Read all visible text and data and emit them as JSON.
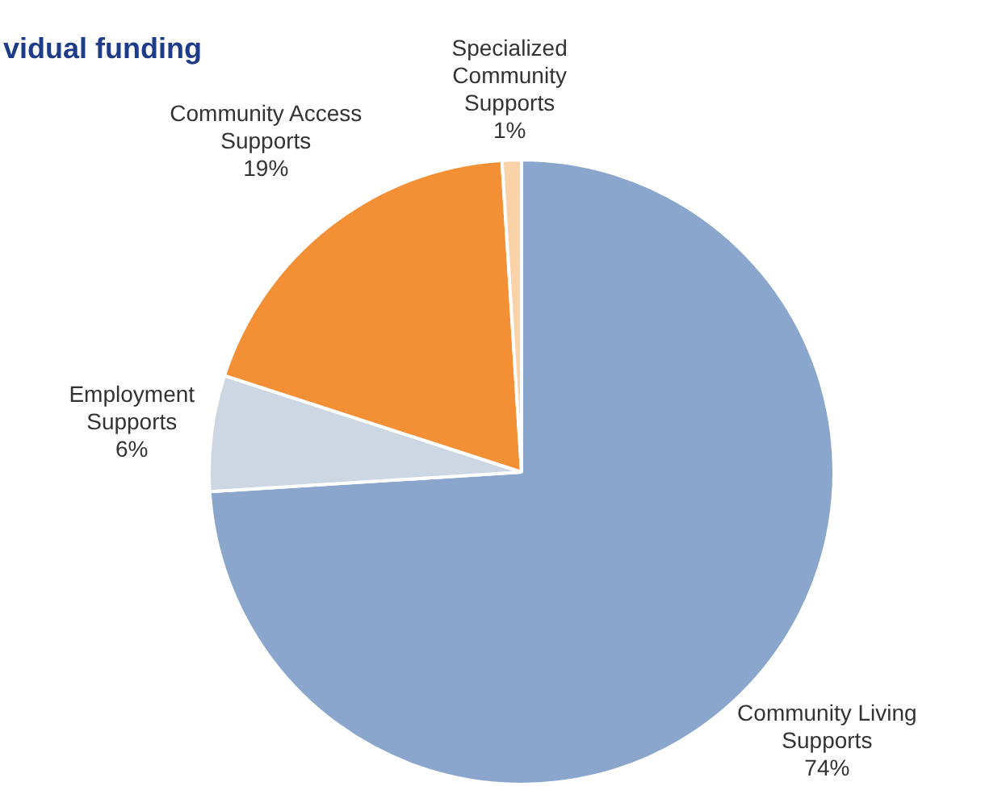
{
  "chart_data": {
    "type": "pie",
    "title": "vidual funding",
    "categories": [
      "Community Living Supports",
      "Employment Supports",
      "Community Access Supports",
      "Specialized Community Supports"
    ],
    "values": [
      74,
      6,
      19,
      1
    ],
    "colors": [
      "#8aa6cc",
      "#cdd6e3",
      "#f39035",
      "#f9d3a7"
    ],
    "value_labels": [
      "74%",
      "6%",
      "19%",
      "1%"
    ],
    "legend": false
  }
}
